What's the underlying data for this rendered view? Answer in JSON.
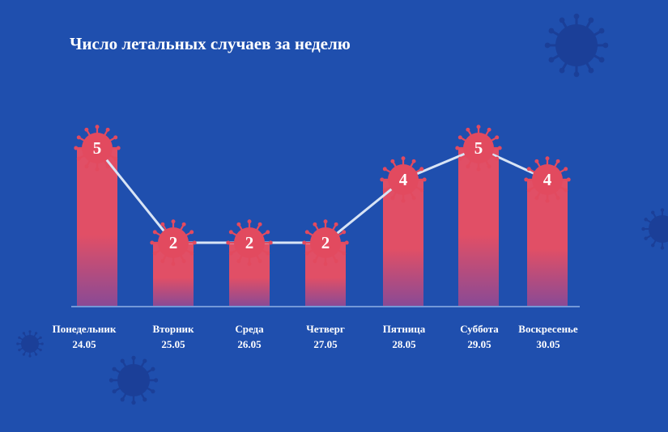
{
  "title": "Число летальных случаев за неделю",
  "chart_data": {
    "type": "bar",
    "title": "Число летальных случаев за неделю",
    "categories": [
      {
        "day": "Понедельник",
        "date": "24.05"
      },
      {
        "day": "Вторник",
        "date": "25.05"
      },
      {
        "day": "Среда",
        "date": "26.05"
      },
      {
        "day": "Четверг",
        "date": "27.05"
      },
      {
        "day": "Пятница",
        "date": "28.05"
      },
      {
        "day": "Суббота",
        "date": "29.05"
      },
      {
        "day": "Воскресенье",
        "date": "30.05"
      }
    ],
    "values": [
      5,
      2,
      2,
      2,
      4,
      5,
      4
    ],
    "overlay": "line",
    "xlabel": "",
    "ylabel": "",
    "ylim": [
      0,
      5
    ],
    "grid": false,
    "legend": "none"
  },
  "colors": {
    "background": "#1f4fae",
    "bar_top": "#e14f66",
    "bar_bottom": "#8a4a95",
    "virus": "#e24a5f",
    "virus_dark": "#1b3f98",
    "line": "#d8e4f5",
    "text": "#ffffff",
    "axis": "#8fb0e6"
  },
  "icons": {
    "marker": "virus-icon",
    "decoration": "virus-icon"
  }
}
